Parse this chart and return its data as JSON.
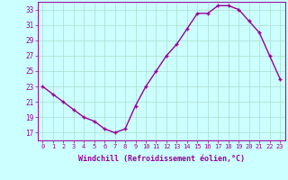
{
  "x": [
    0,
    1,
    2,
    3,
    4,
    5,
    6,
    7,
    8,
    9,
    10,
    11,
    12,
    13,
    14,
    15,
    16,
    17,
    18,
    19,
    20,
    21,
    22,
    23
  ],
  "y": [
    23,
    22,
    21,
    20,
    19,
    18.5,
    17.5,
    17,
    17.5,
    20.5,
    23,
    25,
    27,
    28.5,
    30.5,
    32.5,
    32.5,
    33.5,
    33.5,
    33,
    31.5,
    30,
    27,
    24
  ],
  "line_color": "#990099",
  "marker": "+",
  "bg_color": "#ccffff",
  "grid_color": "#aaddcc",
  "xlabel": "Windchill (Refroidissement éolien,°C)",
  "xlabel_color": "#990099",
  "tick_color": "#990099",
  "ylim": [
    16,
    34
  ],
  "yticks": [
    17,
    19,
    21,
    23,
    25,
    27,
    29,
    31,
    33
  ],
  "xlim": [
    -0.5,
    23.5
  ],
  "xticks": [
    0,
    1,
    2,
    3,
    4,
    5,
    6,
    7,
    8,
    9,
    10,
    11,
    12,
    13,
    14,
    15,
    16,
    17,
    18,
    19,
    20,
    21,
    22,
    23
  ],
  "xtick_labels": [
    "0",
    "1",
    "2",
    "3",
    "4",
    "5",
    "6",
    "7",
    "8",
    "9",
    "10",
    "11",
    "12",
    "13",
    "14",
    "15",
    "16",
    "17",
    "18",
    "19",
    "20",
    "21",
    "22",
    "23"
  ]
}
